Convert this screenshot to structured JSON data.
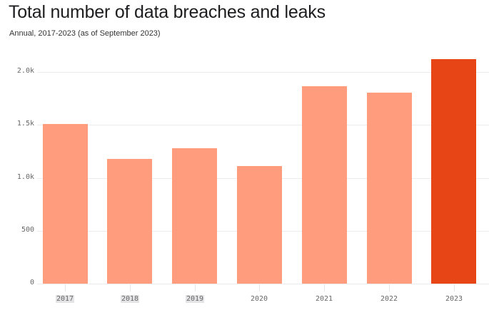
{
  "header": {
    "title": "Total number of data breaches and leaks",
    "subtitle": "Annual, 2017-2023 (as of September 2023)"
  },
  "colors": {
    "bar": "#ff9c7d",
    "highlight": "#e84516",
    "grid": "#ececf0"
  },
  "chart_data": {
    "type": "bar",
    "title": "Total number of data breaches and leaks",
    "subtitle": "Annual, 2017-2023 (as of September 2023)",
    "categories": [
      "2017",
      "2018",
      "2019",
      "2020",
      "2021",
      "2022",
      "2023"
    ],
    "values": [
      1510,
      1180,
      1280,
      1110,
      1865,
      1805,
      2120
    ],
    "highlighted": [
      "2023"
    ],
    "xlabel": "",
    "ylabel": "",
    "ylim": [
      0,
      2000
    ],
    "yticks": [
      0,
      500,
      1000,
      1500,
      2000
    ],
    "ytick_labels": [
      "0",
      "500",
      "1.0k",
      "1.5k",
      "2.0k"
    ],
    "grid": true,
    "legend": null
  }
}
